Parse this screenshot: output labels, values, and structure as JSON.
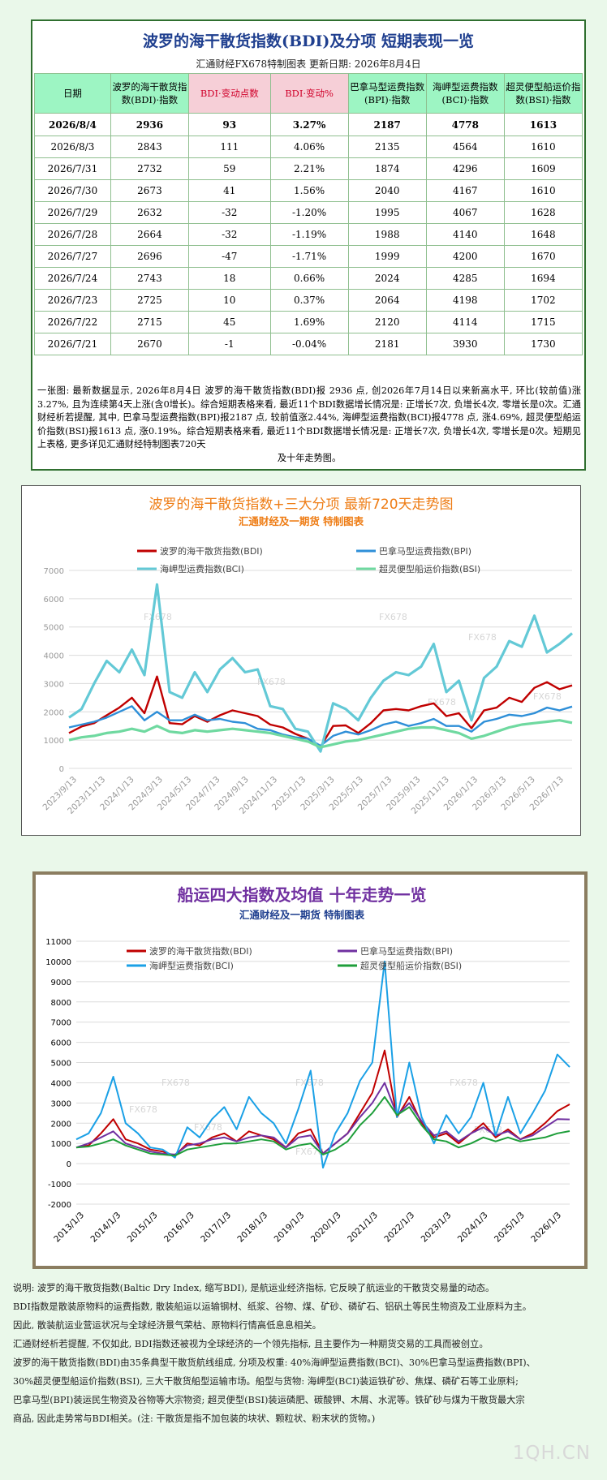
{
  "header": {
    "title": "波罗的海干散货指数(BDI)及分项 短期表现一览",
    "subtitle": "汇通财经FX678特制图表      更新日期: 2026年8月4日"
  },
  "table": {
    "columns": [
      "日期",
      "波罗的海干散货指数(BDI)·指数",
      "BDI·变动点数",
      "BDI·变动%",
      "巴拿马型运费指数(BPI)·指数",
      "海岬型运费指数(BCI)·指数",
      "超灵便型船运价指数(BSI)·指数"
    ],
    "rows": [
      [
        "2026/8/4",
        "2936",
        "93",
        "3.27%",
        "2187",
        "4778",
        "1613"
      ],
      [
        "2026/8/3",
        "2843",
        "111",
        "4.06%",
        "2135",
        "4564",
        "1610"
      ],
      [
        "2026/7/31",
        "2732",
        "59",
        "2.21%",
        "1874",
        "4296",
        "1609"
      ],
      [
        "2026/7/30",
        "2673",
        "41",
        "1.56%",
        "2040",
        "4167",
        "1610"
      ],
      [
        "2026/7/29",
        "2632",
        "-32",
        "-1.20%",
        "1995",
        "4067",
        "1628"
      ],
      [
        "2026/7/28",
        "2664",
        "-32",
        "-1.19%",
        "1988",
        "4140",
        "1648"
      ],
      [
        "2026/7/27",
        "2696",
        "-47",
        "-1.71%",
        "1999",
        "4200",
        "1670"
      ],
      [
        "2026/7/24",
        "2743",
        "18",
        "0.66%",
        "2024",
        "4285",
        "1694"
      ],
      [
        "2026/7/23",
        "2725",
        "10",
        "0.37%",
        "2064",
        "4198",
        "1702"
      ],
      [
        "2026/7/22",
        "2715",
        "45",
        "1.69%",
        "2120",
        "4114",
        "1715"
      ],
      [
        "2026/7/21",
        "2670",
        "-1",
        "-0.04%",
        "2181",
        "3930",
        "1730"
      ]
    ]
  },
  "description": {
    "main": "一张图: 最新数据显示, 2026年8月4日 波罗的海干散货指数(BDI)报 2936 点, 创2026年7月14日以来新高水平, 环比(较前值)涨3.27%, 且为连续第4天上涨(含0增长)。综合短期表格来看, 最近11个BDI数据增长情况是: 正增长7次, 负增长4次, 零增长是0次。汇通财经析若提醒, 其中, 巴拿马型运费指数(BPI)报2187 点, 较前值涨2.44%, 海岬型运费指数(BCI)报4778 点, 涨4.69%, 超灵便型船运价指数(BSI)报1613 点, 涨0.19%。综合短期表格来看, 最近11个BDI数据增长情况是: 正增长7次, 负增长4次, 零增长是0次。短期见上表格, 更多详见汇通财经特制图表720天",
    "tail": "及十年走势图。"
  },
  "colors": {
    "bdi": "#c00000",
    "bpi": "#2e8fd8",
    "bci": "#63c9d6",
    "bsi": "#6fd9a0",
    "bdi2": "#c00000",
    "bpi2": "#7030a0",
    "bci2": "#1aa0e6",
    "bsi2": "#1e9e3a"
  },
  "chart1": {
    "title": "波罗的海干散货指数+三大分项 最新720天走势图",
    "subtitle": "汇通财经及一期货 特制图表",
    "watermark": "FX678"
  },
  "chart2": {
    "title": "船运四大指数及均值 十年走势一览",
    "subtitle": "汇通财经及一期货 特制图表",
    "watermark": "FX678"
  },
  "chart_data": [
    {
      "type": "line",
      "title": "波罗的海干散货指数+三大分项 最新720天走势图",
      "ylim": [
        0,
        7000
      ],
      "yticks": [
        0,
        1000,
        2000,
        3000,
        4000,
        5000,
        6000,
        7000
      ],
      "xticks": [
        "2023/9/13",
        "2023/11/13",
        "2024/1/13",
        "2024/3/13",
        "2024/5/13",
        "2024/7/13",
        "2024/9/13",
        "2024/11/13",
        "2025/1/13",
        "2025/3/13",
        "2025/5/13",
        "2025/7/13",
        "2025/9/13",
        "2025/11/13",
        "2026/1/13",
        "2026/3/13",
        "2026/5/13",
        "2026/7/13"
      ],
      "legend": "top",
      "series": [
        {
          "name": "波罗的海干散货指数(BDI)",
          "values": [
            1250,
            1480,
            1600,
            1880,
            2150,
            2500,
            1950,
            3250,
            1600,
            1560,
            1850,
            1650,
            1880,
            2050,
            1950,
            1850,
            1550,
            1450,
            1220,
            1050,
            770,
            1500,
            1520,
            1250,
            1600,
            2050,
            2100,
            2050,
            2200,
            2300,
            1850,
            1950,
            1420,
            2050,
            2150,
            2500,
            2350,
            2850,
            3050,
            2800,
            2936
          ]
        },
        {
          "name": "巴拿马型运费指数(BPI)",
          "values": [
            1450,
            1550,
            1650,
            1800,
            2000,
            2200,
            1700,
            2000,
            1700,
            1700,
            1900,
            1700,
            1750,
            1650,
            1600,
            1400,
            1350,
            1200,
            1100,
            1050,
            800,
            1150,
            1300,
            1200,
            1350,
            1550,
            1650,
            1500,
            1600,
            1750,
            1500,
            1500,
            1300,
            1650,
            1750,
            1900,
            1850,
            1950,
            2150,
            2050,
            2187
          ]
        },
        {
          "name": "海岬型运费指数(BCI)",
          "values": [
            1800,
            2100,
            3000,
            3800,
            3400,
            4200,
            3300,
            6500,
            2700,
            2500,
            3400,
            2700,
            3500,
            3900,
            3400,
            3500,
            2200,
            2100,
            1400,
            1300,
            600,
            2300,
            2100,
            1700,
            2500,
            3100,
            3400,
            3300,
            3600,
            4400,
            2700,
            3100,
            1700,
            3200,
            3600,
            4500,
            4300,
            5400,
            4100,
            4400,
            4778
          ]
        },
        {
          "name": "超灵便型船运价指数(BSI)",
          "values": [
            1000,
            1100,
            1150,
            1250,
            1300,
            1400,
            1300,
            1500,
            1300,
            1250,
            1350,
            1300,
            1350,
            1400,
            1350,
            1300,
            1250,
            1150,
            1050,
            950,
            750,
            850,
            950,
            1000,
            1100,
            1200,
            1300,
            1400,
            1450,
            1450,
            1350,
            1250,
            1050,
            1150,
            1300,
            1450,
            1550,
            1600,
            1650,
            1700,
            1613
          ]
        }
      ]
    },
    {
      "type": "line",
      "title": "船运四大指数及均值 十年走势一览",
      "ylim": [
        -2000,
        11000
      ],
      "yticks": [
        -2000,
        -1000,
        0,
        1000,
        2000,
        3000,
        4000,
        5000,
        6000,
        7000,
        8000,
        9000,
        10000,
        11000
      ],
      "xticks": [
        "2013/1/3",
        "2014/1/3",
        "2015/1/3",
        "2016/1/3",
        "2017/1/3",
        "2018/1/3",
        "2019/1/3",
        "2020/1/3",
        "2021/1/3",
        "2022/1/3",
        "2023/1/3",
        "2024/1/3",
        "2025/1/3",
        "2026/1/3"
      ],
      "legend": "top",
      "series": [
        {
          "name": "波罗的海干散货指数(BDI)",
          "values": [
            800,
            900,
            1500,
            2200,
            1200,
            1000,
            700,
            600,
            400,
            1000,
            900,
            1300,
            1500,
            1100,
            1600,
            1400,
            1200,
            800,
            1500,
            1700,
            500,
            1000,
            1500,
            2500,
            3500,
            5600,
            2300,
            3300,
            2000,
            1300,
            1500,
            1000,
            1500,
            2000,
            1300,
            1700,
            1200,
            1500,
            2000,
            2600,
            2936
          ]
        },
        {
          "name": "巴拿马型运费指数(BPI)",
          "values": [
            800,
            1000,
            1300,
            1600,
            1000,
            800,
            600,
            500,
            450,
            900,
            1000,
            1200,
            1300,
            1100,
            1300,
            1400,
            1300,
            800,
            1300,
            1400,
            500,
            1000,
            1500,
            2300,
            3000,
            4000,
            2400,
            3000,
            2100,
            1400,
            1600,
            1100,
            1500,
            1800,
            1400,
            1600,
            1200,
            1400,
            1800,
            2200,
            2187
          ]
        },
        {
          "name": "海岬型运费指数(BCI)",
          "values": [
            1200,
            1500,
            2500,
            4300,
            2000,
            1500,
            800,
            700,
            300,
            1800,
            1300,
            2200,
            2800,
            1700,
            3300,
            2500,
            2000,
            1000,
            2700,
            4600,
            -200,
            1500,
            2500,
            4100,
            5000,
            10000,
            2300,
            5000,
            2300,
            1000,
            2400,
            1500,
            2300,
            4000,
            1400,
            3300,
            1500,
            2500,
            3600,
            5400,
            4778
          ]
        },
        {
          "name": "超灵便型船运价指数(BSI)",
          "values": [
            800,
            850,
            1000,
            1200,
            900,
            700,
            500,
            450,
            400,
            700,
            800,
            900,
            1000,
            1000,
            1100,
            1200,
            1100,
            700,
            900,
            1000,
            450,
            700,
            1100,
            1900,
            2500,
            3300,
            2400,
            2800,
            1900,
            1200,
            1100,
            800,
            1000,
            1300,
            1100,
            1300,
            1100,
            1200,
            1300,
            1500,
            1613
          ]
        }
      ]
    }
  ],
  "notes": [
    "说明: 波罗的海干散货指数(Baltic Dry Index, 缩写BDI), 是航运业经济指标, 它反映了航运业的干散货交易量的动态。",
    "BDI指数是散装原物料的运费指数, 散装船运以运输钢材、纸浆、谷物、煤、矿砂、磷矿石、铝矾土等民生物资及工业原料为主。",
    "因此, 散装航运业营运状况与全球经济景气荣枯、原物料行情高低息息相关。",
    "汇通财经析若提醒, 不仅如此, BDI指数还被视为全球经济的一个领先指标, 且主要作为一种期货交易的工具而被创立。",
    "波罗的海干散货指数(BDI)由35条典型干散货航线组成, 分项及权重: 40%海岬型运费指数(BCI)、30%巴拿马型运费指数(BPI)、",
    "30%超灵便型船运价指数(BSI), 三大干散货船型运输市场。船型与货物: 海岬型(BCI)装运铁矿砂、焦煤、磷矿石等工业原料;",
    "巴拿马型(BPI)装运民生物资及谷物等大宗物资; 超灵便型(BSI)装运磷肥、碳酸钾、木屑、水泥等。铁矿砂与煤为干散货最大宗",
    "商品, 因此走势常与BDI相关。(注: 干散货是指不加包装的块状、颗粒状、粉末状的货物。)"
  ],
  "logo": "1QH.CN"
}
